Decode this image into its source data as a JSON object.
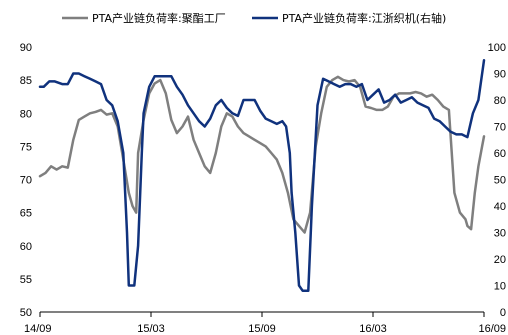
{
  "chart_data": {
    "type": "line",
    "title": "",
    "xlabel": "",
    "ylabel_left": "",
    "ylabel_right": "",
    "legend_position": "top",
    "grid": false,
    "x_tick_labels": [
      "14/09",
      "15/03",
      "15/09",
      "16/03",
      "16/09"
    ],
    "x_range": [
      0,
      24
    ],
    "y_left_range": [
      50,
      90
    ],
    "y_left_ticks": [
      50,
      55,
      60,
      65,
      70,
      75,
      80,
      85,
      90
    ],
    "y_right_range": [
      0,
      100
    ],
    "y_right_ticks": [
      0,
      10,
      20,
      30,
      40,
      50,
      60,
      70,
      80,
      90,
      100
    ],
    "series": [
      {
        "name": "PTA产业链负荷率:聚酯工厂",
        "axis": "left",
        "color": "#7f7f7f",
        "x": [
          0,
          0.3,
          0.6,
          0.9,
          1.2,
          1.5,
          1.8,
          2.1,
          2.4,
          2.7,
          3.0,
          3.3,
          3.6,
          3.9,
          4.2,
          4.5,
          4.8,
          5.0,
          5.2,
          5.3,
          5.6,
          5.9,
          6.2,
          6.5,
          6.8,
          7.1,
          7.4,
          7.7,
          8.0,
          8.3,
          8.6,
          8.9,
          9.2,
          9.5,
          9.8,
          10.1,
          10.4,
          10.7,
          11.0,
          11.3,
          11.6,
          11.9,
          12.2,
          12.5,
          12.8,
          13.1,
          13.4,
          13.7,
          14.0,
          14.3,
          14.6,
          14.9,
          15.2,
          15.5,
          15.8,
          16.1,
          16.4,
          16.7,
          17.0,
          17.3,
          17.6,
          17.9,
          18.2,
          18.5,
          18.8,
          19.1,
          19.4,
          19.7,
          20.0,
          20.3,
          20.6,
          20.9,
          21.2,
          21.5,
          21.8,
          22.1,
          22.4,
          22.7,
          23.0,
          23.1,
          23.3,
          23.5,
          23.7,
          23.9,
          24.0
        ],
        "values": [
          70.5,
          71,
          72,
          71.5,
          72,
          71.8,
          76,
          79,
          79.5,
          80,
          80.2,
          80.5,
          79.8,
          80,
          78,
          73,
          68,
          66,
          65,
          74,
          79,
          83,
          84.5,
          85,
          83,
          79,
          77,
          78,
          79.5,
          76,
          74,
          72,
          71,
          74,
          78,
          80,
          79.5,
          78,
          77,
          76.5,
          76,
          75.5,
          75,
          74,
          73,
          71,
          68,
          64,
          63,
          62,
          65,
          75,
          80,
          84,
          85,
          85.5,
          85,
          84.8,
          85,
          84,
          81,
          80.8,
          80.5,
          80.5,
          81,
          82.5,
          83,
          83,
          83,
          83.2,
          83,
          82.5,
          82.8,
          82,
          81,
          80.5,
          68,
          65,
          64,
          63,
          62.5,
          68,
          72,
          75,
          76.5
        ]
      },
      {
        "name": "PTA产业链负荷率:江浙织机(右轴)",
        "axis": "right",
        "color": "#10327d",
        "x": [
          0,
          0.2,
          0.5,
          0.8,
          1.2,
          1.5,
          1.8,
          2.1,
          2.4,
          2.7,
          3.0,
          3.3,
          3.6,
          3.9,
          4.2,
          4.5,
          4.7,
          4.8,
          4.9,
          5.1,
          5.3,
          5.5,
          5.6,
          5.9,
          6.2,
          6.5,
          6.8,
          7.1,
          7.4,
          7.7,
          8.0,
          8.3,
          8.6,
          8.9,
          9.2,
          9.5,
          9.8,
          10.1,
          10.4,
          10.7,
          11.0,
          11.3,
          11.6,
          11.9,
          12.2,
          12.5,
          12.8,
          13.1,
          13.3,
          13.5,
          13.6,
          13.8,
          14.0,
          14.2,
          14.3,
          14.5,
          14.7,
          15.0,
          15.3,
          15.6,
          15.9,
          16.2,
          16.5,
          16.8,
          17.1,
          17.4,
          17.7,
          18.0,
          18.3,
          18.6,
          18.9,
          19.2,
          19.5,
          19.8,
          20.1,
          20.4,
          20.7,
          21.0,
          21.3,
          21.6,
          21.9,
          22.2,
          22.5,
          22.8,
          23.1,
          23.4,
          23.7,
          24.0
        ],
        "values": [
          85,
          85,
          87,
          87,
          86,
          86,
          90,
          90,
          89,
          88,
          87,
          86,
          80,
          78,
          72,
          60,
          30,
          10,
          10,
          10,
          25,
          60,
          75,
          85,
          89,
          89,
          89,
          89,
          85,
          82,
          78,
          75,
          72,
          70,
          73,
          78,
          80,
          77,
          75,
          74,
          80,
          80,
          80,
          76,
          73,
          72,
          71,
          72,
          70,
          60,
          45,
          30,
          10,
          8,
          8,
          8,
          40,
          78,
          88,
          87,
          86,
          85,
          86,
          86,
          85,
          86,
          80,
          82,
          84,
          79,
          80,
          82,
          79,
          80,
          81,
          79,
          78,
          77,
          73,
          72,
          70,
          68,
          67,
          67,
          66,
          75,
          80,
          95
        ]
      }
    ]
  }
}
